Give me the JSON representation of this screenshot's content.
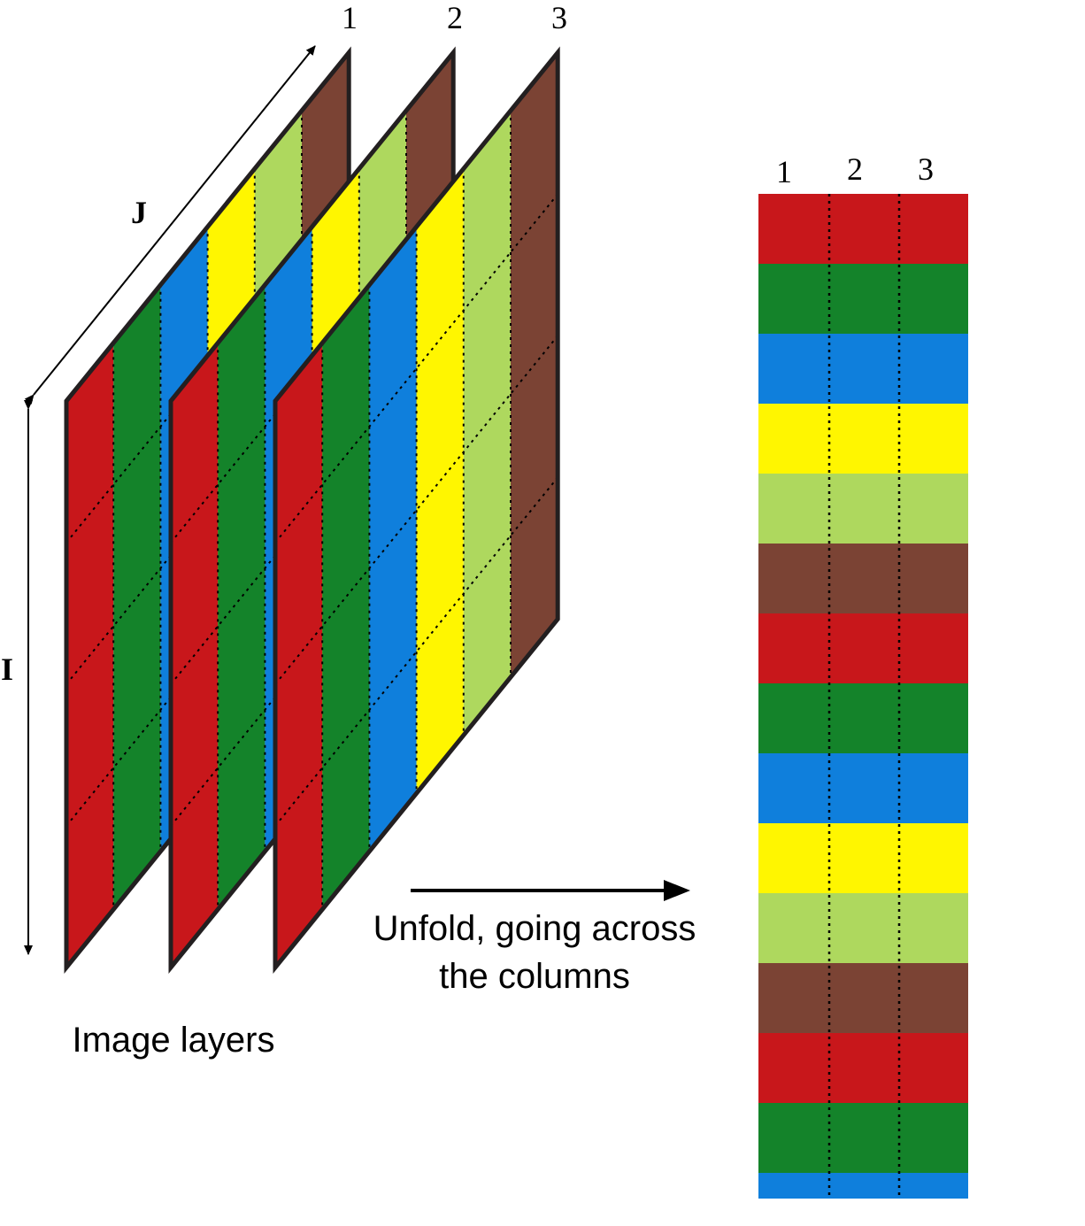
{
  "layer_labels": [
    "1",
    "2",
    "3"
  ],
  "column_labels": [
    "1",
    "2",
    "3"
  ],
  "dimension_labels": {
    "rows": "I",
    "columns": "J"
  },
  "caption_image_layers": "Image layers",
  "unfold_caption": {
    "line1": "Unfold, going across",
    "line2": "the columns"
  },
  "palette": {
    "red": "#C8171B",
    "green": "#14832A",
    "blue": "#0F7FDC",
    "yellow": "#FFF600",
    "light_green": "#AED85E",
    "brown": "#7B4334"
  },
  "stripe_order": [
    "red",
    "green",
    "blue",
    "yellow",
    "light_green",
    "brown"
  ],
  "unfolded_band_sequence": [
    "red",
    "green",
    "blue",
    "yellow",
    "light_green",
    "brown",
    "red",
    "green",
    "blue",
    "yellow",
    "light_green",
    "brown",
    "red",
    "green",
    "blue"
  ],
  "icons": {
    "i_dimension_arrow": "double-arrow-vertical-icon",
    "j_dimension_arrow": "double-arrow-diagonal-icon",
    "unfold_arrow": "arrow-right-icon"
  }
}
